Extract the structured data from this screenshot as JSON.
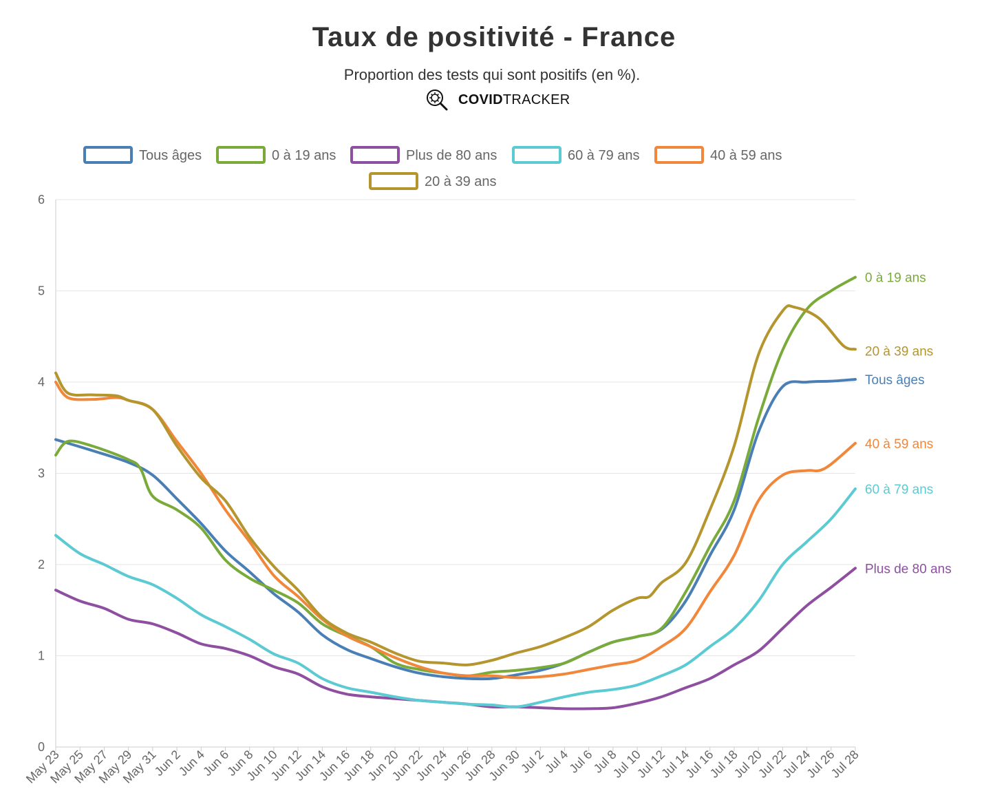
{
  "title": "Taux de positivité - France",
  "subtitle": "Proportion des tests qui sont positifs (en %).",
  "brand": {
    "bold": "COVID",
    "regular": "TRACKER",
    "icon": "virus-magnifier-icon"
  },
  "chart_data": {
    "type": "line",
    "title": "Taux de positivité - France",
    "subtitle": "Proportion des tests qui sont positifs (en %).",
    "xlabel": "",
    "ylabel": "",
    "ylim": [
      0,
      6
    ],
    "yticks": [
      0,
      1,
      2,
      3,
      4,
      5,
      6
    ],
    "grid": true,
    "legend_position": "top",
    "x_start": "2021-05-23",
    "x_end": "2021-07-28",
    "xticks": [
      "May 23",
      "May 25",
      "May 27",
      "May 29",
      "May 31",
      "Jun 2",
      "Jun 4",
      "Jun 6",
      "Jun 8",
      "Jun 10",
      "Jun 12",
      "Jun 14",
      "Jun 16",
      "Jun 18",
      "Jun 20",
      "Jun 22",
      "Jun 24",
      "Jun 26",
      "Jun 28",
      "Jun 30",
      "Jul 2",
      "Jul 4",
      "Jul 6",
      "Jul 8",
      "Jul 10",
      "Jul 12",
      "Jul 14",
      "Jul 16",
      "Jul 18",
      "Jul 20",
      "Jul 22",
      "Jul 24",
      "Jul 26",
      "Jul 28"
    ],
    "series": [
      {
        "name": "Tous âges",
        "color": "#4a7fb5",
        "x": [
          "2021-05-23",
          "2021-05-26",
          "2021-05-29",
          "2021-05-31",
          "2021-06-02",
          "2021-06-04",
          "2021-06-06",
          "2021-06-08",
          "2021-06-10",
          "2021-06-12",
          "2021-06-14",
          "2021-06-16",
          "2021-06-18",
          "2021-06-20",
          "2021-06-22",
          "2021-06-24",
          "2021-06-26",
          "2021-06-28",
          "2021-06-30",
          "2021-07-02",
          "2021-07-04",
          "2021-07-06",
          "2021-07-08",
          "2021-07-10",
          "2021-07-12",
          "2021-07-14",
          "2021-07-16",
          "2021-07-18",
          "2021-07-20",
          "2021-07-22",
          "2021-07-24",
          "2021-07-26",
          "2021-07-28"
        ],
        "y": [
          3.37,
          3.25,
          3.12,
          2.98,
          2.72,
          2.45,
          2.15,
          1.92,
          1.68,
          1.48,
          1.23,
          1.07,
          0.97,
          0.88,
          0.81,
          0.77,
          0.75,
          0.75,
          0.79,
          0.84,
          0.92,
          1.04,
          1.15,
          1.21,
          1.29,
          1.6,
          2.1,
          2.6,
          3.45,
          3.95,
          4.0,
          4.01,
          4.03
        ]
      },
      {
        "name": "0 à 19 ans",
        "color": "#7aab3a",
        "x": [
          "2021-05-23",
          "2021-05-24",
          "2021-05-26",
          "2021-05-29",
          "2021-05-30",
          "2021-05-31",
          "2021-06-02",
          "2021-06-04",
          "2021-06-06",
          "2021-06-08",
          "2021-06-10",
          "2021-06-12",
          "2021-06-14",
          "2021-06-16",
          "2021-06-18",
          "2021-06-20",
          "2021-06-22",
          "2021-06-24",
          "2021-06-26",
          "2021-06-28",
          "2021-06-30",
          "2021-07-02",
          "2021-07-04",
          "2021-07-06",
          "2021-07-08",
          "2021-07-10",
          "2021-07-12",
          "2021-07-14",
          "2021-07-16",
          "2021-07-18",
          "2021-07-20",
          "2021-07-22",
          "2021-07-24",
          "2021-07-26",
          "2021-07-28"
        ],
        "y": [
          3.2,
          3.35,
          3.3,
          3.15,
          3.05,
          2.75,
          2.6,
          2.4,
          2.05,
          1.85,
          1.72,
          1.58,
          1.35,
          1.22,
          1.1,
          0.92,
          0.85,
          0.81,
          0.78,
          0.82,
          0.84,
          0.87,
          0.92,
          1.04,
          1.15,
          1.21,
          1.3,
          1.7,
          2.2,
          2.7,
          3.6,
          4.35,
          4.8,
          5.0,
          5.15
        ]
      },
      {
        "name": "Plus de 80 ans",
        "color": "#8e4fa1",
        "x": [
          "2021-05-23",
          "2021-05-25",
          "2021-05-27",
          "2021-05-29",
          "2021-05-31",
          "2021-06-02",
          "2021-06-04",
          "2021-06-06",
          "2021-06-08",
          "2021-06-10",
          "2021-06-12",
          "2021-06-14",
          "2021-06-16",
          "2021-06-18",
          "2021-06-20",
          "2021-06-22",
          "2021-06-24",
          "2021-06-26",
          "2021-06-28",
          "2021-06-30",
          "2021-07-02",
          "2021-07-04",
          "2021-07-06",
          "2021-07-08",
          "2021-07-10",
          "2021-07-12",
          "2021-07-14",
          "2021-07-16",
          "2021-07-18",
          "2021-07-20",
          "2021-07-22",
          "2021-07-24",
          "2021-07-26",
          "2021-07-28"
        ],
        "y": [
          1.72,
          1.6,
          1.52,
          1.4,
          1.35,
          1.25,
          1.13,
          1.08,
          1.0,
          0.88,
          0.8,
          0.66,
          0.58,
          0.55,
          0.53,
          0.51,
          0.49,
          0.47,
          0.44,
          0.44,
          0.43,
          0.42,
          0.42,
          0.43,
          0.48,
          0.55,
          0.65,
          0.75,
          0.9,
          1.05,
          1.3,
          1.55,
          1.75,
          1.96
        ]
      },
      {
        "name": "60 à 79 ans",
        "color": "#5bcad3",
        "x": [
          "2021-05-23",
          "2021-05-25",
          "2021-05-27",
          "2021-05-29",
          "2021-05-31",
          "2021-06-02",
          "2021-06-04",
          "2021-06-06",
          "2021-06-08",
          "2021-06-10",
          "2021-06-12",
          "2021-06-14",
          "2021-06-16",
          "2021-06-18",
          "2021-06-20",
          "2021-06-22",
          "2021-06-24",
          "2021-06-26",
          "2021-06-28",
          "2021-06-30",
          "2021-07-02",
          "2021-07-04",
          "2021-07-06",
          "2021-07-08",
          "2021-07-10",
          "2021-07-12",
          "2021-07-14",
          "2021-07-16",
          "2021-07-18",
          "2021-07-20",
          "2021-07-22",
          "2021-07-24",
          "2021-07-26",
          "2021-07-28"
        ],
        "y": [
          2.32,
          2.12,
          2.0,
          1.87,
          1.78,
          1.63,
          1.45,
          1.32,
          1.18,
          1.02,
          0.92,
          0.75,
          0.65,
          0.6,
          0.55,
          0.51,
          0.49,
          0.47,
          0.46,
          0.44,
          0.49,
          0.55,
          0.6,
          0.63,
          0.68,
          0.78,
          0.9,
          1.1,
          1.3,
          1.6,
          2.0,
          2.25,
          2.5,
          2.83
        ]
      },
      {
        "name": "40 à 59 ans",
        "color": "#f0873a",
        "x": [
          "2021-05-23",
          "2021-05-24",
          "2021-05-26",
          "2021-05-28",
          "2021-05-29",
          "2021-05-31",
          "2021-06-02",
          "2021-06-04",
          "2021-06-06",
          "2021-06-08",
          "2021-06-10",
          "2021-06-12",
          "2021-06-14",
          "2021-06-16",
          "2021-06-18",
          "2021-06-20",
          "2021-06-22",
          "2021-06-24",
          "2021-06-26",
          "2021-06-28",
          "2021-06-30",
          "2021-07-02",
          "2021-07-04",
          "2021-07-06",
          "2021-07-08",
          "2021-07-10",
          "2021-07-12",
          "2021-07-14",
          "2021-07-16",
          "2021-07-18",
          "2021-07-20",
          "2021-07-22",
          "2021-07-24",
          "2021-07-25",
          "2021-07-26",
          "2021-07-28"
        ],
        "y": [
          4.0,
          3.83,
          3.81,
          3.83,
          3.8,
          3.7,
          3.35,
          3.0,
          2.6,
          2.25,
          1.88,
          1.65,
          1.4,
          1.22,
          1.1,
          0.98,
          0.88,
          0.81,
          0.78,
          0.78,
          0.76,
          0.77,
          0.8,
          0.85,
          0.9,
          0.95,
          1.1,
          1.3,
          1.7,
          2.1,
          2.7,
          2.98,
          3.03,
          3.03,
          3.1,
          3.33
        ]
      },
      {
        "name": "20 à 39 ans",
        "color": "#b4952e",
        "x": [
          "2021-05-23",
          "2021-05-24",
          "2021-05-26",
          "2021-05-28",
          "2021-05-29",
          "2021-05-31",
          "2021-06-02",
          "2021-06-04",
          "2021-06-06",
          "2021-06-08",
          "2021-06-10",
          "2021-06-12",
          "2021-06-14",
          "2021-06-16",
          "2021-06-18",
          "2021-06-20",
          "2021-06-22",
          "2021-06-24",
          "2021-06-26",
          "2021-06-28",
          "2021-06-30",
          "2021-07-02",
          "2021-07-04",
          "2021-07-06",
          "2021-07-08",
          "2021-07-10",
          "2021-07-11",
          "2021-07-12",
          "2021-07-14",
          "2021-07-16",
          "2021-07-18",
          "2021-07-20",
          "2021-07-22",
          "2021-07-23",
          "2021-07-25",
          "2021-07-27",
          "2021-07-28"
        ],
        "y": [
          4.1,
          3.88,
          3.86,
          3.85,
          3.8,
          3.7,
          3.3,
          2.95,
          2.7,
          2.3,
          1.98,
          1.72,
          1.42,
          1.25,
          1.15,
          1.03,
          0.94,
          0.92,
          0.9,
          0.95,
          1.03,
          1.1,
          1.2,
          1.32,
          1.5,
          1.63,
          1.65,
          1.8,
          2.02,
          2.6,
          3.3,
          4.3,
          4.78,
          4.82,
          4.7,
          4.4,
          4.36
        ]
      }
    ]
  }
}
